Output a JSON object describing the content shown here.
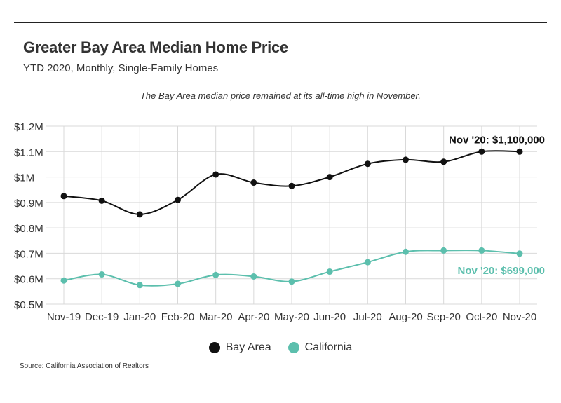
{
  "header": {
    "title": "Greater Bay Area Median Home Price",
    "subtitle": "YTD 2020, Monthly, Single-Family Homes",
    "annotation": "The Bay Area median price remained at its all-time high in November."
  },
  "footer": {
    "source": "Source:  California Association of Realtors"
  },
  "colors": {
    "bay_area": "#111111",
    "california": "#5cbfad",
    "grid": "#d9d9d9"
  },
  "chart_data": {
    "type": "line",
    "title": "Greater Bay Area Median Home Price",
    "subtitle": "YTD 2020, Monthly, Single-Family Homes",
    "xlabel": "",
    "ylabel": "",
    "categories": [
      "Nov-19",
      "Dec-19",
      "Jan-20",
      "Feb-20",
      "Mar-20",
      "Apr-20",
      "May-20",
      "Jun-20",
      "Jul-20",
      "Aug-20",
      "Sep-20",
      "Oct-20",
      "Nov-20"
    ],
    "ylim": [
      500000,
      1200000
    ],
    "yticks": [
      500000,
      600000,
      700000,
      800000,
      900000,
      1000000,
      1100000,
      1200000
    ],
    "ytick_labels": [
      "$0.5M",
      "$0.6M",
      "$0.7M",
      "$0.8M",
      "$0.9M",
      "$1M",
      "$1.1M",
      "$1.2M"
    ],
    "grid": true,
    "legend_position": "bottom",
    "series": [
      {
        "name": "Bay Area",
        "color_key": "bay_area",
        "values": [
          925000,
          907000,
          853000,
          910000,
          1010000,
          978000,
          965000,
          1000000,
          1052000,
          1068000,
          1060000,
          1100000,
          1100000
        ],
        "end_label": "Nov '20: $1,100,000"
      },
      {
        "name": "California",
        "color_key": "california",
        "values": [
          593000,
          617000,
          575000,
          580000,
          615000,
          609000,
          589000,
          628000,
          665000,
          706000,
          711000,
          711000,
          699000
        ],
        "end_label": "Nov '20: $699,000"
      }
    ]
  }
}
